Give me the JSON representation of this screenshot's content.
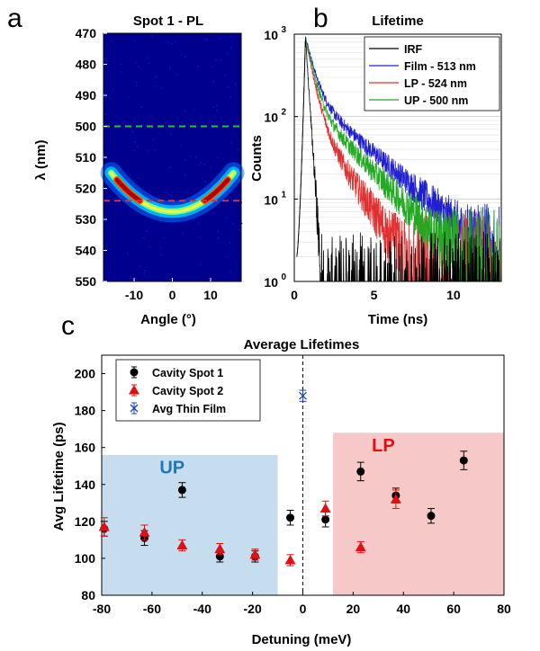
{
  "panel_labels": {
    "a": "a",
    "b": "b",
    "c": "c"
  },
  "colors": {
    "dashed_green": "#22cc22",
    "dashed_red": "#e03030",
    "up_shade": "#c6dcef",
    "lp_shade": "#f7c8c8"
  },
  "chart_data": [
    {
      "type": "heatmap",
      "title": "Spot 1 - PL",
      "xlabel": "Angle (°)",
      "ylabel": "λ (nm)",
      "xlim": [
        -18,
        18
      ],
      "ylim": [
        470,
        550
      ],
      "x_ticks": [
        -10,
        0,
        10
      ],
      "y_ticks": [
        470,
        480,
        490,
        500,
        510,
        520,
        530,
        540,
        550
      ],
      "dispersion": {
        "description": "Lower polariton branch",
        "center_angle": 0,
        "center_wavelength": 527.5,
        "edge_angle": 16,
        "edge_wavelength": 515
      },
      "reference_lines": [
        {
          "label": "UP",
          "wavelength": 500,
          "color": "green"
        },
        {
          "label": "LP",
          "wavelength": 524,
          "color": "red"
        }
      ]
    },
    {
      "type": "line",
      "title": "Lifetime",
      "xlabel": "Time (ns)",
      "ylabel": "Counts",
      "y_scale": "log",
      "xlim": [
        0,
        13
      ],
      "ylim": [
        1,
        1000
      ],
      "x_ticks": [
        0,
        5,
        10
      ],
      "y_ticks": [
        "10",
        "10",
        "10",
        "10"
      ],
      "y_tick_exponents": [
        "0",
        "1",
        "2",
        "3"
      ],
      "legend_loc": "top-right",
      "series": [
        {
          "name": "IRF",
          "color": "#000000",
          "peak_time": 0.7,
          "peak": 900,
          "tau_fast": 0.15,
          "amp_slow": 0,
          "tau_slow": 1,
          "noise_floor": 3
        },
        {
          "name": "Film - 513 nm",
          "color": "#2020d0",
          "peak_time": 0.7,
          "peak": 950,
          "tau_fast": 0.45,
          "amp_slow": 190,
          "tau_slow": 2.6,
          "noise_floor": 8
        },
        {
          "name": "LP - 524 nm",
          "color": "#e03030",
          "peak_time": 0.7,
          "peak": 900,
          "tau_fast": 0.4,
          "amp_slow": 120,
          "tau_slow": 1.5,
          "noise_floor": 6
        },
        {
          "name": "UP - 500 nm",
          "color": "#22aa22",
          "peak_time": 0.7,
          "peak": 920,
          "tau_fast": 0.42,
          "amp_slow": 150,
          "tau_slow": 2.2,
          "noise_floor": 7
        }
      ]
    },
    {
      "type": "scatter",
      "title": "Average Lifetimes",
      "xlabel": "Detuning (meV)",
      "ylabel": "Avg Lifetime (ps)",
      "xlim": [
        -80,
        80
      ],
      "ylim": [
        80,
        210
      ],
      "x_ticks": [
        -80,
        -60,
        -40,
        -20,
        0,
        20,
        40,
        60,
        80
      ],
      "y_ticks": [
        80,
        100,
        120,
        140,
        160,
        180,
        200
      ],
      "legend_loc": "top-left",
      "region_labels": [
        {
          "text": "UP",
          "x_range": [
            -80,
            -10
          ],
          "y_range": [
            80,
            156
          ]
        },
        {
          "text": "LP",
          "x_range": [
            12,
            80
          ],
          "y_range": [
            80,
            168
          ]
        }
      ],
      "vertical_line": {
        "x": 0,
        "style": "dashed"
      },
      "series": [
        {
          "name": "Cavity Spot 1",
          "marker": "circle",
          "color": "#000000",
          "points": [
            {
              "x": -79,
              "y": 116,
              "err": 4
            },
            {
              "x": -63,
              "y": 111,
              "err": 4
            },
            {
              "x": -48,
              "y": 137,
              "err": 4
            },
            {
              "x": -33,
              "y": 101,
              "err": 3
            },
            {
              "x": -19,
              "y": 101,
              "err": 3
            },
            {
              "x": -5,
              "y": 122,
              "err": 4
            },
            {
              "x": 9,
              "y": 121,
              "err": 4
            },
            {
              "x": 23,
              "y": 147,
              "err": 5
            },
            {
              "x": 37,
              "y": 134,
              "err": 4
            },
            {
              "x": 51,
              "y": 123,
              "err": 4
            },
            {
              "x": 64,
              "y": 153,
              "err": 5
            }
          ]
        },
        {
          "name": "Cavity Spot 2",
          "marker": "triangle",
          "color": "#e01010",
          "points": [
            {
              "x": -79,
              "y": 117,
              "err": 5
            },
            {
              "x": -63,
              "y": 114,
              "err": 4
            },
            {
              "x": -48,
              "y": 107,
              "err": 3
            },
            {
              "x": -33,
              "y": 105,
              "err": 3
            },
            {
              "x": -19,
              "y": 102,
              "err": 3
            },
            {
              "x": -5,
              "y": 99,
              "err": 3
            },
            {
              "x": 9,
              "y": 127,
              "err": 4
            },
            {
              "x": 23,
              "y": 106,
              "err": 3
            },
            {
              "x": 37,
              "y": 132,
              "err": 5
            }
          ]
        },
        {
          "name": "Avg Thin Film",
          "marker": "x",
          "color": "#2040c0",
          "points": [
            {
              "x": 0,
              "y": 188,
              "err": 3
            }
          ]
        }
      ]
    }
  ]
}
